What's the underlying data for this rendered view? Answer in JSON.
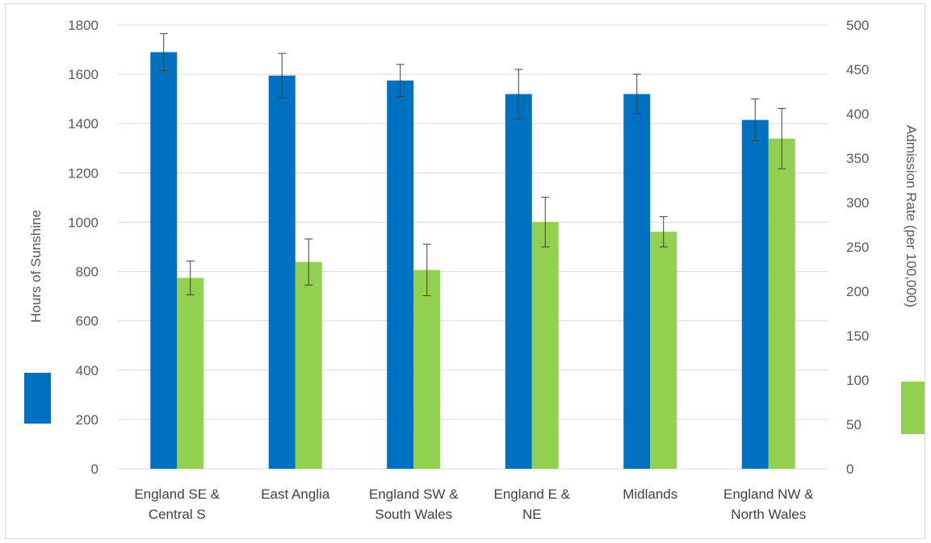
{
  "chart_data": {
    "type": "bar",
    "title": "",
    "categories": [
      [
        "England SE &",
        "Central S"
      ],
      [
        "East Anglia"
      ],
      [
        "England SW &",
        "South Wales"
      ],
      [
        "England E &",
        "NE"
      ],
      [
        "Midlands"
      ],
      [
        "England NW &",
        "North Wales"
      ]
    ],
    "series": [
      {
        "axis": "left",
        "color": "#0070C0",
        "values": [
          1690,
          1595,
          1575,
          1520,
          1520,
          1415
        ],
        "error": [
          75,
          90,
          65,
          100,
          80,
          85
        ]
      },
      {
        "axis": "right",
        "color": "#92D050",
        "values": [
          215,
          233,
          224,
          278,
          267,
          372
        ],
        "error": [
          19,
          26,
          29,
          28,
          17,
          34
        ]
      }
    ],
    "y_left": {
      "label": "Hours of Sunshine",
      "min": 0,
      "max": 1800,
      "step": 200
    },
    "y_right": {
      "label": "Admission Rate (per 100,000)",
      "min": 0,
      "max": 500,
      "step": 50
    },
    "grid": true,
    "legend_swatches": [
      {
        "color": "#0070C0"
      },
      {
        "color": "#92D050"
      }
    ]
  }
}
